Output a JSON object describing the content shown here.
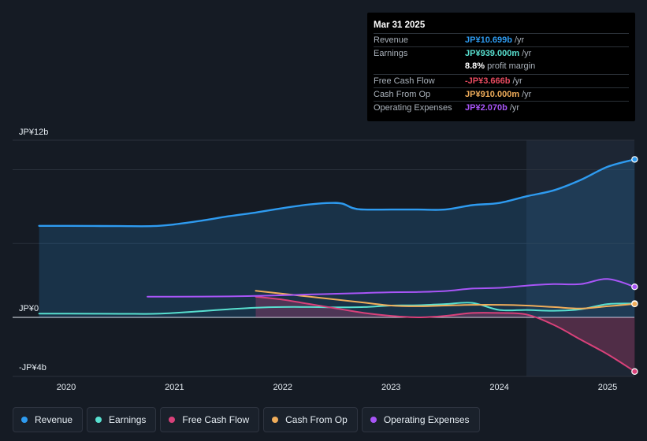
{
  "tooltip": {
    "date": "Mar 31 2025",
    "rows": [
      {
        "label": "Revenue",
        "value": "JP¥10.699b",
        "unit": "/yr",
        "color": "#2e9bf0"
      },
      {
        "label": "Earnings",
        "value": "JP¥939.000m",
        "unit": "/yr",
        "color": "#58e0d0"
      },
      {
        "label": "",
        "value": "8.8%",
        "unit": "profit margin",
        "color": "#ffffff"
      },
      {
        "label": "Free Cash Flow",
        "value": "-JP¥3.666b",
        "unit": "/yr",
        "color": "#e84a5f"
      },
      {
        "label": "Cash From Op",
        "value": "JP¥910.000m",
        "unit": "/yr",
        "color": "#f0ad5a"
      },
      {
        "label": "Operating Expenses",
        "value": "JP¥2.070b",
        "unit": "/yr",
        "color": "#a855f7"
      }
    ]
  },
  "legend": [
    {
      "label": "Revenue",
      "color": "#2e9bf0"
    },
    {
      "label": "Earnings",
      "color": "#58e0d0"
    },
    {
      "label": "Free Cash Flow",
      "color": "#d9417a"
    },
    {
      "label": "Cash From Op",
      "color": "#f0ad5a"
    },
    {
      "label": "Operating Expenses",
      "color": "#a855f7"
    }
  ],
  "chart_data": {
    "type": "line",
    "y_tick_labels": [
      "JP¥12b",
      "JP¥0",
      "-JP¥4b"
    ],
    "ylim": [
      -4,
      12
    ],
    "y_unit": "JP¥ billions",
    "x_ticks": [
      "2020",
      "2021",
      "2022",
      "2023",
      "2024",
      "2025"
    ],
    "xlim": [
      2019.65,
      2025.25
    ],
    "forecast_shade_start": 2024.25,
    "grid": true,
    "series": [
      {
        "name": "Revenue",
        "color": "#2e9bf0",
        "fill": true,
        "x": [
          2019.75,
          2020.0,
          2020.5,
          2020.8,
          2021.0,
          2021.25,
          2021.5,
          2021.75,
          2022.0,
          2022.25,
          2022.45,
          2022.55,
          2022.65,
          2022.75,
          2023.0,
          2023.25,
          2023.5,
          2023.75,
          2024.0,
          2024.25,
          2024.5,
          2024.75,
          2025.0,
          2025.25
        ],
        "values": [
          6.2,
          6.2,
          6.18,
          6.18,
          6.3,
          6.55,
          6.85,
          7.1,
          7.4,
          7.65,
          7.75,
          7.7,
          7.4,
          7.3,
          7.3,
          7.3,
          7.3,
          7.6,
          7.75,
          8.2,
          8.6,
          9.3,
          10.2,
          10.699
        ]
      },
      {
        "name": "Earnings",
        "color": "#58e0d0",
        "x": [
          2019.75,
          2020.0,
          2020.5,
          2020.8,
          2021.0,
          2021.25,
          2021.5,
          2021.75,
          2022.0,
          2022.25,
          2022.5,
          2022.75,
          2023.0,
          2023.25,
          2023.5,
          2023.75,
          2024.0,
          2024.25,
          2024.5,
          2024.75,
          2025.0,
          2025.25
        ],
        "values": [
          0.25,
          0.25,
          0.24,
          0.24,
          0.3,
          0.42,
          0.55,
          0.65,
          0.7,
          0.7,
          0.68,
          0.7,
          0.8,
          0.82,
          0.9,
          0.98,
          0.5,
          0.5,
          0.45,
          0.55,
          0.9,
          0.939
        ]
      },
      {
        "name": "Free Cash Flow",
        "color": "#d9417a",
        "fill": true,
        "x": [
          2021.75,
          2022.0,
          2022.25,
          2022.5,
          2022.75,
          2023.0,
          2023.25,
          2023.5,
          2023.75,
          2024.0,
          2024.25,
          2024.5,
          2024.75,
          2025.0,
          2025.25
        ],
        "values": [
          1.4,
          1.2,
          0.9,
          0.6,
          0.3,
          0.1,
          0.0,
          0.1,
          0.3,
          0.3,
          0.2,
          -0.5,
          -1.5,
          -2.5,
          -3.666
        ]
      },
      {
        "name": "Cash From Op",
        "color": "#f0ad5a",
        "x": [
          2021.75,
          2022.0,
          2022.25,
          2022.5,
          2022.75,
          2023.0,
          2023.25,
          2023.5,
          2023.75,
          2024.0,
          2024.25,
          2024.5,
          2024.75,
          2025.0,
          2025.25
        ],
        "values": [
          1.8,
          1.6,
          1.4,
          1.2,
          1.0,
          0.8,
          0.75,
          0.8,
          0.85,
          0.85,
          0.8,
          0.7,
          0.6,
          0.75,
          0.91
        ]
      },
      {
        "name": "Operating Expenses",
        "color": "#a855f7",
        "x": [
          2020.75,
          2021.0,
          2021.5,
          2021.75,
          2022.0,
          2022.25,
          2022.5,
          2022.75,
          2023.0,
          2023.25,
          2023.5,
          2023.75,
          2024.0,
          2024.25,
          2024.5,
          2024.75,
          2025.0,
          2025.25
        ],
        "values": [
          1.4,
          1.4,
          1.42,
          1.45,
          1.5,
          1.55,
          1.6,
          1.65,
          1.7,
          1.72,
          1.78,
          1.95,
          2.0,
          2.15,
          2.25,
          2.25,
          2.6,
          2.07
        ]
      }
    ]
  }
}
